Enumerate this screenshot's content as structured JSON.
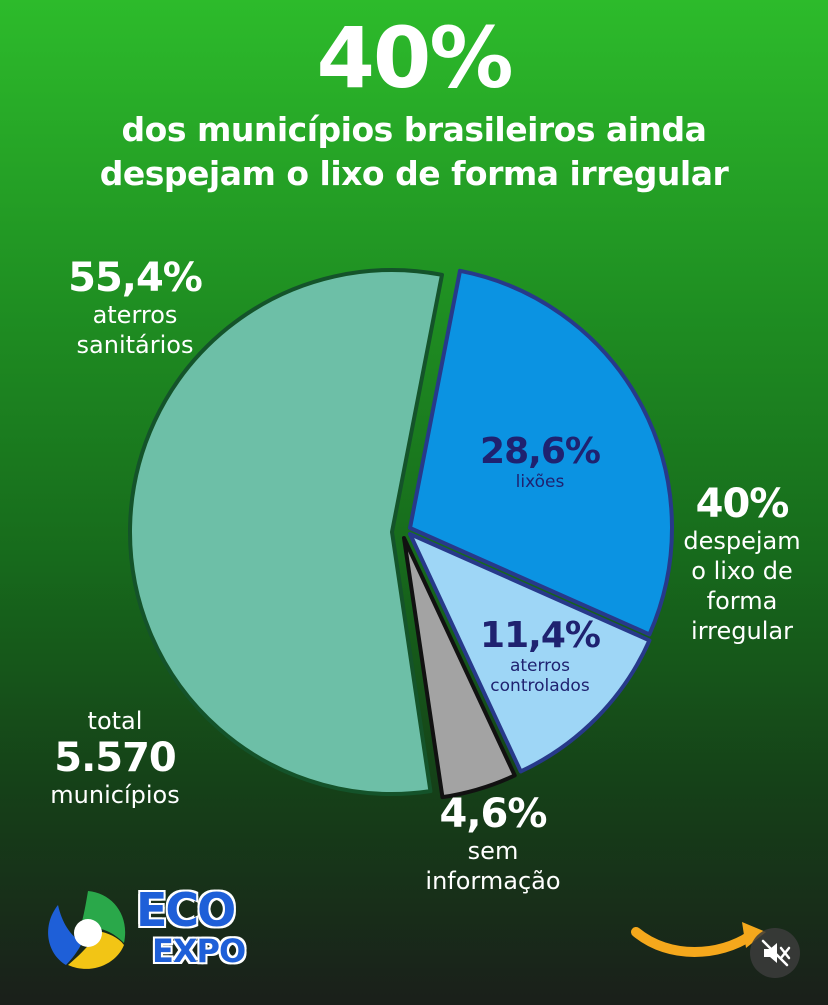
{
  "headline": {
    "percent": "40%",
    "line1": "dos municípios brasileiros ainda",
    "line2": "despejam o lixo de forma irregular"
  },
  "labels": {
    "sanitarios": {
      "value": "55,4%",
      "line1": "aterros",
      "line2": "sanitários"
    },
    "lixoes": {
      "value": "28,6%",
      "line1": "lixões"
    },
    "controlados": {
      "value": "11,4%",
      "line1": "aterros",
      "line2": "controlados"
    },
    "sem_info": {
      "value": "4,6%",
      "line1": "sem",
      "line2": "informação"
    },
    "irregular": {
      "value": "40%",
      "line1": "despejam",
      "line2": "o lixo de",
      "line3": "forma",
      "line4": "irregular"
    },
    "total": {
      "line1": "total",
      "value": "5.570",
      "line2": "municípios"
    }
  },
  "logo": {
    "line1": "ECO",
    "line2": "EXPO"
  },
  "chart_data": {
    "type": "pie",
    "categories": [
      "aterros sanitários",
      "lixões",
      "aterros controlados",
      "sem informação"
    ],
    "values": [
      55.4,
      28.6,
      11.4,
      4.6
    ],
    "colors": [
      "#6dbfa7",
      "#0b93e2",
      "#9ed6f6",
      "#a3a3a3"
    ],
    "outline_colors": [
      "#14532a",
      "#27398a",
      "#27398a",
      "#111111"
    ],
    "title": "40%",
    "subtitle": "dos municípios brasileiros ainda despejam o lixo de forma irregular"
  },
  "controls": {
    "sound_icon": "muted-speaker-icon",
    "arrow_icon": "curved-arrow-icon"
  }
}
